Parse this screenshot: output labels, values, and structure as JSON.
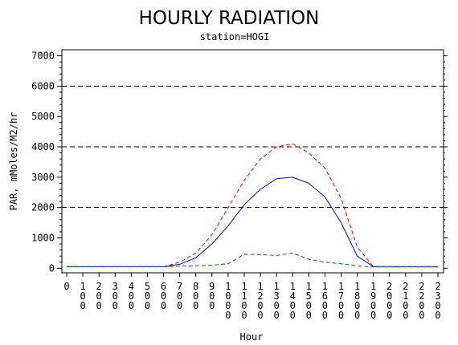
{
  "chart_data": {
    "type": "line",
    "title": "HOURLY RADIATION",
    "subtitle": "station=HOGI",
    "xlabel": "Hour",
    "ylabel": "PAR, mMoles/M2/hr",
    "x_ticks": [
      "0",
      "100",
      "200",
      "300",
      "400",
      "500",
      "600",
      "700",
      "800",
      "900",
      "1000",
      "1100",
      "1200",
      "1300",
      "1400",
      "1500",
      "1600",
      "1700",
      "1800",
      "1900",
      "2000",
      "2100",
      "2200",
      "2300"
    ],
    "y_ticks": [
      0,
      1000,
      2000,
      3000,
      4000,
      5000,
      6000,
      7000
    ],
    "ylim": [
      -150,
      7200
    ],
    "xlim": [
      0,
      23
    ],
    "grid_y": [
      2000,
      4000,
      6000
    ],
    "x": [
      0,
      1,
      2,
      3,
      4,
      5,
      6,
      7,
      8,
      9,
      10,
      11,
      12,
      13,
      14,
      15,
      16,
      17,
      18,
      19,
      20,
      21,
      22,
      23
    ],
    "series": [
      {
        "style": "dashed",
        "color": "#ff0000",
        "values": [
          50,
          50,
          50,
          50,
          50,
          50,
          50,
          200,
          500,
          1100,
          2000,
          2900,
          3600,
          4000,
          4100,
          3800,
          3300,
          2300,
          700,
          50,
          50,
          50,
          50,
          50
        ]
      },
      {
        "style": "solid",
        "color": "#0000ff",
        "values": [
          50,
          50,
          50,
          50,
          50,
          50,
          50,
          130,
          350,
          800,
          1400,
          2100,
          2600,
          2950,
          3000,
          2800,
          2350,
          1500,
          400,
          50,
          50,
          50,
          50,
          50
        ]
      },
      {
        "style": "dashed",
        "color": "#008000",
        "values": [
          50,
          50,
          50,
          50,
          50,
          50,
          50,
          70,
          80,
          100,
          150,
          460,
          450,
          420,
          500,
          300,
          200,
          150,
          80,
          40,
          40,
          40,
          40,
          40
        ]
      }
    ]
  }
}
